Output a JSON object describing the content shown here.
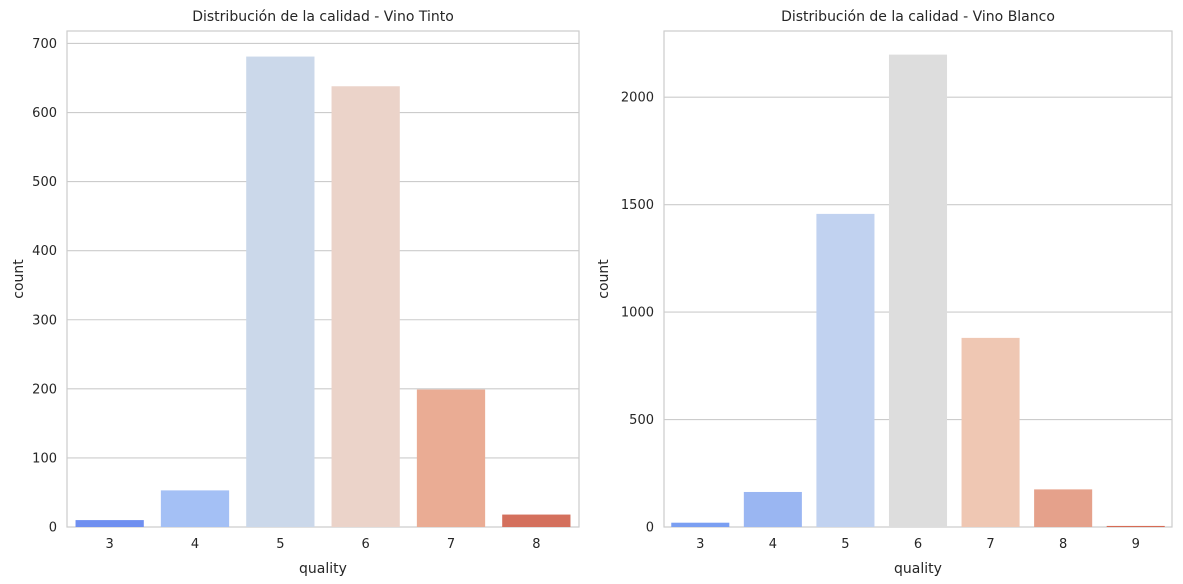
{
  "chart_data": [
    {
      "type": "bar",
      "title": "Distribución de la calidad - Vino Tinto",
      "xlabel": "quality",
      "ylabel": "count",
      "categories": [
        "3",
        "4",
        "5",
        "6",
        "7",
        "8"
      ],
      "values": [
        10,
        53,
        681,
        638,
        199,
        18
      ],
      "colors": [
        "#6f8ff0",
        "#a4c0f5",
        "#cbd8ea",
        "#ebd3c9",
        "#eaac94",
        "#d4705d"
      ],
      "ylim": [
        0,
        718
      ],
      "yticks": [
        "0",
        "100",
        "200",
        "300",
        "400",
        "500",
        "600",
        "700"
      ],
      "grid": "horizontal"
    },
    {
      "type": "bar",
      "title": "Distribución de la calidad - Vino Blanco",
      "xlabel": "quality",
      "ylabel": "count",
      "categories": [
        "3",
        "4",
        "5",
        "6",
        "7",
        "8",
        "9"
      ],
      "values": [
        20,
        163,
        1457,
        2198,
        880,
        175,
        5
      ],
      "colors": [
        "#7b9ff2",
        "#9ab6f2",
        "#c1d2f0",
        "#dddddd",
        "#efc7b3",
        "#e5a18b",
        "#d66b55"
      ],
      "ylim": [
        0,
        2308
      ],
      "yticks": [
        "0",
        "500",
        "1000",
        "1500",
        "2000"
      ],
      "grid": "horizontal"
    }
  ]
}
